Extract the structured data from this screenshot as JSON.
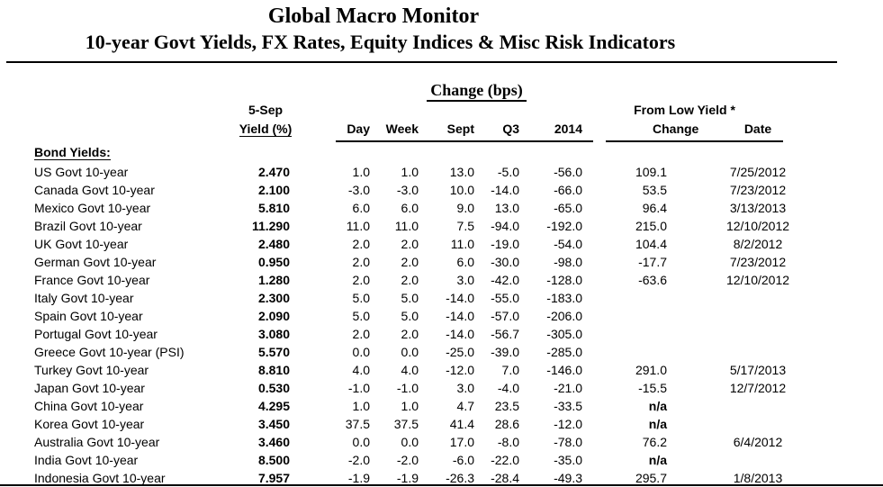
{
  "page": {
    "title": "Global Macro Monitor",
    "subtitle": "10-year Govt Yields, FX Rates, Equity Indices & Misc Risk Indicators"
  },
  "table": {
    "group_header": "Change (bps)",
    "columns": {
      "asof": "5-Sep",
      "yield": "Yield (%)",
      "day": "Day",
      "week": "Week",
      "sept": "Sept",
      "q3": "Q3",
      "y2014": "2014",
      "from_low": "From Low Yield *",
      "change": "Change",
      "date": "Date"
    },
    "section": "Bond Yields:",
    "rows": [
      {
        "label": "US Govt 10-year",
        "yield": "2.470",
        "day": "1.0",
        "week": "1.0",
        "sept": "13.0",
        "q3": "-5.0",
        "y2014": "-56.0",
        "change": "109.1",
        "date": "7/25/2012"
      },
      {
        "label": "Canada Govt 10-year",
        "yield": "2.100",
        "day": "-3.0",
        "week": "-3.0",
        "sept": "10.0",
        "q3": "-14.0",
        "y2014": "-66.0",
        "change": "53.5",
        "date": "7/23/2012"
      },
      {
        "label": "Mexico Govt 10-year",
        "yield": "5.810",
        "day": "6.0",
        "week": "6.0",
        "sept": "9.0",
        "q3": "13.0",
        "y2014": "-65.0",
        "change": "96.4",
        "date": "3/13/2013"
      },
      {
        "label": "Brazil Govt 10-year",
        "yield": "11.290",
        "day": "11.0",
        "week": "11.0",
        "sept": "7.5",
        "q3": "-94.0",
        "y2014": "-192.0",
        "change": "215.0",
        "date": "12/10/2012"
      },
      {
        "label": "UK Govt 10-year",
        "yield": "2.480",
        "day": "2.0",
        "week": "2.0",
        "sept": "11.0",
        "q3": "-19.0",
        "y2014": "-54.0",
        "change": "104.4",
        "date": "8/2/2012"
      },
      {
        "label": "German Govt 10-year",
        "yield": "0.950",
        "day": "2.0",
        "week": "2.0",
        "sept": "6.0",
        "q3": "-30.0",
        "y2014": "-98.0",
        "change": "-17.7",
        "date": "7/23/2012"
      },
      {
        "label": "France Govt 10-year",
        "yield": "1.280",
        "day": "2.0",
        "week": "2.0",
        "sept": "3.0",
        "q3": "-42.0",
        "y2014": "-128.0",
        "change": "-63.6",
        "date": "12/10/2012"
      },
      {
        "label": "Italy Govt 10-year",
        "yield": "2.300",
        "day": "5.0",
        "week": "5.0",
        "sept": "-14.0",
        "q3": "-55.0",
        "y2014": "-183.0",
        "change": "",
        "date": ""
      },
      {
        "label": "Spain Govt 10-year",
        "yield": "2.090",
        "day": "5.0",
        "week": "5.0",
        "sept": "-14.0",
        "q3": "-57.0",
        "y2014": "-206.0",
        "change": "",
        "date": ""
      },
      {
        "label": "Portugal Govt 10-year",
        "yield": "3.080",
        "day": "2.0",
        "week": "2.0",
        "sept": "-14.0",
        "q3": "-56.7",
        "y2014": "-305.0",
        "change": "",
        "date": ""
      },
      {
        "label": "Greece Govt 10-year (PSI)",
        "yield": "5.570",
        "day": "0.0",
        "week": "0.0",
        "sept": "-25.0",
        "q3": "-39.0",
        "y2014": "-285.0",
        "change": "",
        "date": ""
      },
      {
        "label": "Turkey Govt 10-year",
        "yield": "8.810",
        "day": "4.0",
        "week": "4.0",
        "sept": "-12.0",
        "q3": "7.0",
        "y2014": "-146.0",
        "change": "291.0",
        "date": "5/17/2013"
      },
      {
        "label": "Japan Govt 10-year",
        "yield": "0.530",
        "day": "-1.0",
        "week": "-1.0",
        "sept": "3.0",
        "q3": "-4.0",
        "y2014": "-21.0",
        "change": "-15.5",
        "date": "12/7/2012"
      },
      {
        "label": "China Govt 10-year",
        "yield": "4.295",
        "day": "1.0",
        "week": "1.0",
        "sept": "4.7",
        "q3": "23.5",
        "y2014": "-33.5",
        "change": "n/a",
        "date": ""
      },
      {
        "label": "Korea Govt 10-year",
        "yield": "3.450",
        "day": "37.5",
        "week": "37.5",
        "sept": "41.4",
        "q3": "28.6",
        "y2014": "-12.0",
        "change": "n/a",
        "date": ""
      },
      {
        "label": "Australia Govt 10-year",
        "yield": "3.460",
        "day": "0.0",
        "week": "0.0",
        "sept": "17.0",
        "q3": "-8.0",
        "y2014": "-78.0",
        "change": "76.2",
        "date": "6/4/2012"
      },
      {
        "label": "India Govt 10-year",
        "yield": "8.500",
        "day": "-2.0",
        "week": "-2.0",
        "sept": "-6.0",
        "q3": "-22.0",
        "y2014": "-35.0",
        "change": "n/a",
        "date": ""
      },
      {
        "label": "Indonesia Govt 10-year",
        "yield": "7.957",
        "day": "-1.9",
        "week": "-1.9",
        "sept": "-26.3",
        "q3": "-28.4",
        "y2014": "-49.3",
        "change": "295.7",
        "date": "1/8/2013"
      }
    ]
  }
}
